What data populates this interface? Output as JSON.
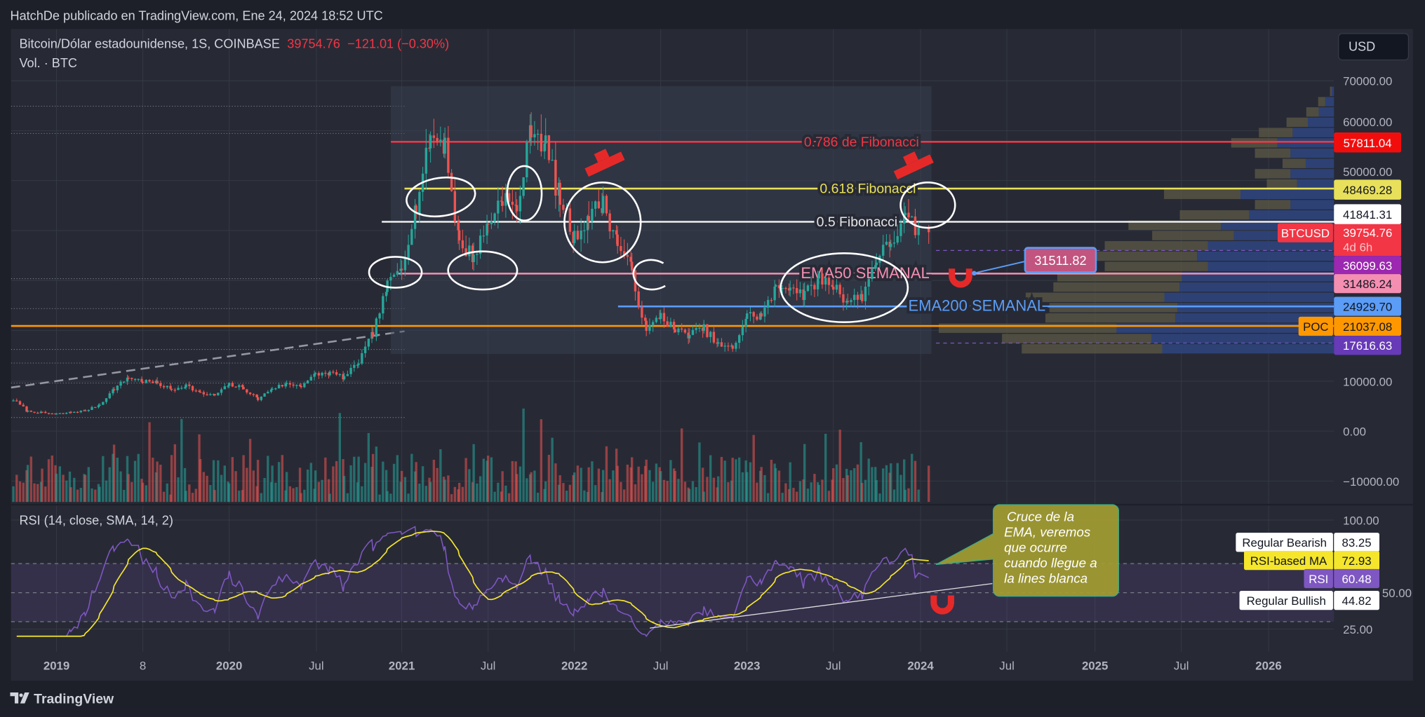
{
  "header": {
    "publisher": "HatchDe publicado en TradingView.com, Ene 24, 2024 18:52 UTC"
  },
  "legend": {
    "symbol": "Bitcoin/Dólar estadounidense, 1S, COINBASE",
    "price": "39754.76",
    "change": "−121.01 (−0.30%)",
    "volume": "Vol. · BTC",
    "rsi": "RSI (14, close, SMA, 14, 2)"
  },
  "currency_button": "USD",
  "footer": {
    "logo": "TradingView"
  },
  "colors": {
    "up": "#26a69a",
    "down": "#ef5350",
    "fib786": "#f23645",
    "fib618": "#e8e05a",
    "fib05": "#e6e6e6",
    "ema50": "#f48fb1",
    "ema200": "#5b9cf6",
    "poc": "#ff9800",
    "rsi": "#7e57c2",
    "rsi_ma": "#f5e62c"
  },
  "annotations": {
    "fib786": "0.786 de Fibonacci",
    "fib618": "0.618 Fibonacci",
    "fib05": "0.5 Fibonacci",
    "ema50": "EMA50 SEMANAL",
    "ema200": "EMA200 SEMANAL",
    "price_note": "31511.82",
    "callout": [
      "Cruce de la",
      "EMA, veremos",
      "que  ocurre",
      "cuando llegue a",
      "la lines blanca"
    ]
  },
  "price_labels": {
    "fib786": "57811.04",
    "fib618": "48469.28",
    "fib05": "41841.31",
    "symbol_tag": "BTCUSD",
    "last": "39754.76",
    "countdown": "4d 6h",
    "purple_high": "36099.63",
    "ema50": "31486.24",
    "ema200": "24929.70",
    "poc_tag": "POC",
    "poc": "21037.08",
    "purple_low": "17616.63"
  },
  "rsi_labels": {
    "bearish_tag": "Regular Bearish",
    "bearish": "83.25",
    "ma_tag": "RSI-based MA",
    "ma": "72.93",
    "rsi_tag": "RSI",
    "rsi": "60.48",
    "bullish_tag": "Regular Bullish",
    "bullish": "44.82"
  },
  "chart_data": {
    "type": "candlestick",
    "interval": "1W",
    "price_ticks": [
      "70000.00",
      "60000.00",
      "50000.00",
      "10000.00",
      "0.00",
      "−10000.00"
    ],
    "rsi_ticks": [
      "100.00",
      "50.00",
      "25.00"
    ],
    "time_ticks": [
      "2019",
      "8",
      "2020",
      "Jul",
      "2021",
      "Jul",
      "2022",
      "Jul",
      "2023",
      "Jul",
      "2024",
      "Jul",
      "2025",
      "Jul",
      "2026"
    ],
    "ylim": [
      -10000,
      70000
    ],
    "rsi_ylim": [
      25,
      100
    ],
    "rsi_bands": [
      70,
      50,
      30
    ],
    "levels": {
      "fib786": 57811.04,
      "fib618": 48469.28,
      "fib05": 41841.31,
      "ema50": 31486.24,
      "ema200": 24929.7,
      "poc": 21037.08,
      "purple_high": 36099.63,
      "purple_low": 17616.63
    },
    "months": [
      "2018-10",
      "2018-11",
      "2018-12",
      "2019-01",
      "2019-02",
      "2019-03",
      "2019-04",
      "2019-05",
      "2019-06",
      "2019-07",
      "2019-08",
      "2019-09",
      "2019-10",
      "2019-11",
      "2019-12",
      "2020-01",
      "2020-02",
      "2020-03",
      "2020-04",
      "2020-05",
      "2020-06",
      "2020-07",
      "2020-08",
      "2020-09",
      "2020-10",
      "2020-11",
      "2020-12",
      "2021-01",
      "2021-02",
      "2021-03",
      "2021-04",
      "2021-05",
      "2021-06",
      "2021-07",
      "2021-08",
      "2021-09",
      "2021-10",
      "2021-11",
      "2021-12",
      "2022-01",
      "2022-02",
      "2022-03",
      "2022-04",
      "2022-05",
      "2022-06",
      "2022-07",
      "2022-08",
      "2022-09",
      "2022-10",
      "2022-11",
      "2022-12",
      "2023-01",
      "2023-02",
      "2023-03",
      "2023-04",
      "2023-05",
      "2023-06",
      "2023-07",
      "2023-08",
      "2023-09",
      "2023-10",
      "2023-11",
      "2023-12",
      "2024-01"
    ],
    "close": [
      6300,
      4000,
      3700,
      3450,
      3800,
      4100,
      5300,
      8500,
      10800,
      10000,
      9600,
      8300,
      9200,
      7550,
      7200,
      9350,
      8600,
      6400,
      8600,
      9450,
      9140,
      11350,
      11650,
      10780,
      13800,
      19700,
      29000,
      33100,
      45200,
      58800,
      57700,
      37300,
      35000,
      41500,
      47100,
      43800,
      61300,
      57000,
      46300,
      38500,
      43200,
      45500,
      37700,
      31800,
      19900,
      23300,
      20000,
      19400,
      20500,
      17200,
      16500,
      23100,
      23100,
      28500,
      29200,
      27200,
      30500,
      29200,
      26000,
      27000,
      34500,
      37700,
      42300,
      39754.76
    ],
    "volume_profile": [
      1,
      4,
      7,
      12,
      19,
      26,
      20,
      13,
      20,
      17,
      43,
      20,
      39,
      52,
      46,
      58,
      63,
      58,
      70,
      71,
      78,
      72,
      73,
      100,
      84,
      79
    ]
  }
}
